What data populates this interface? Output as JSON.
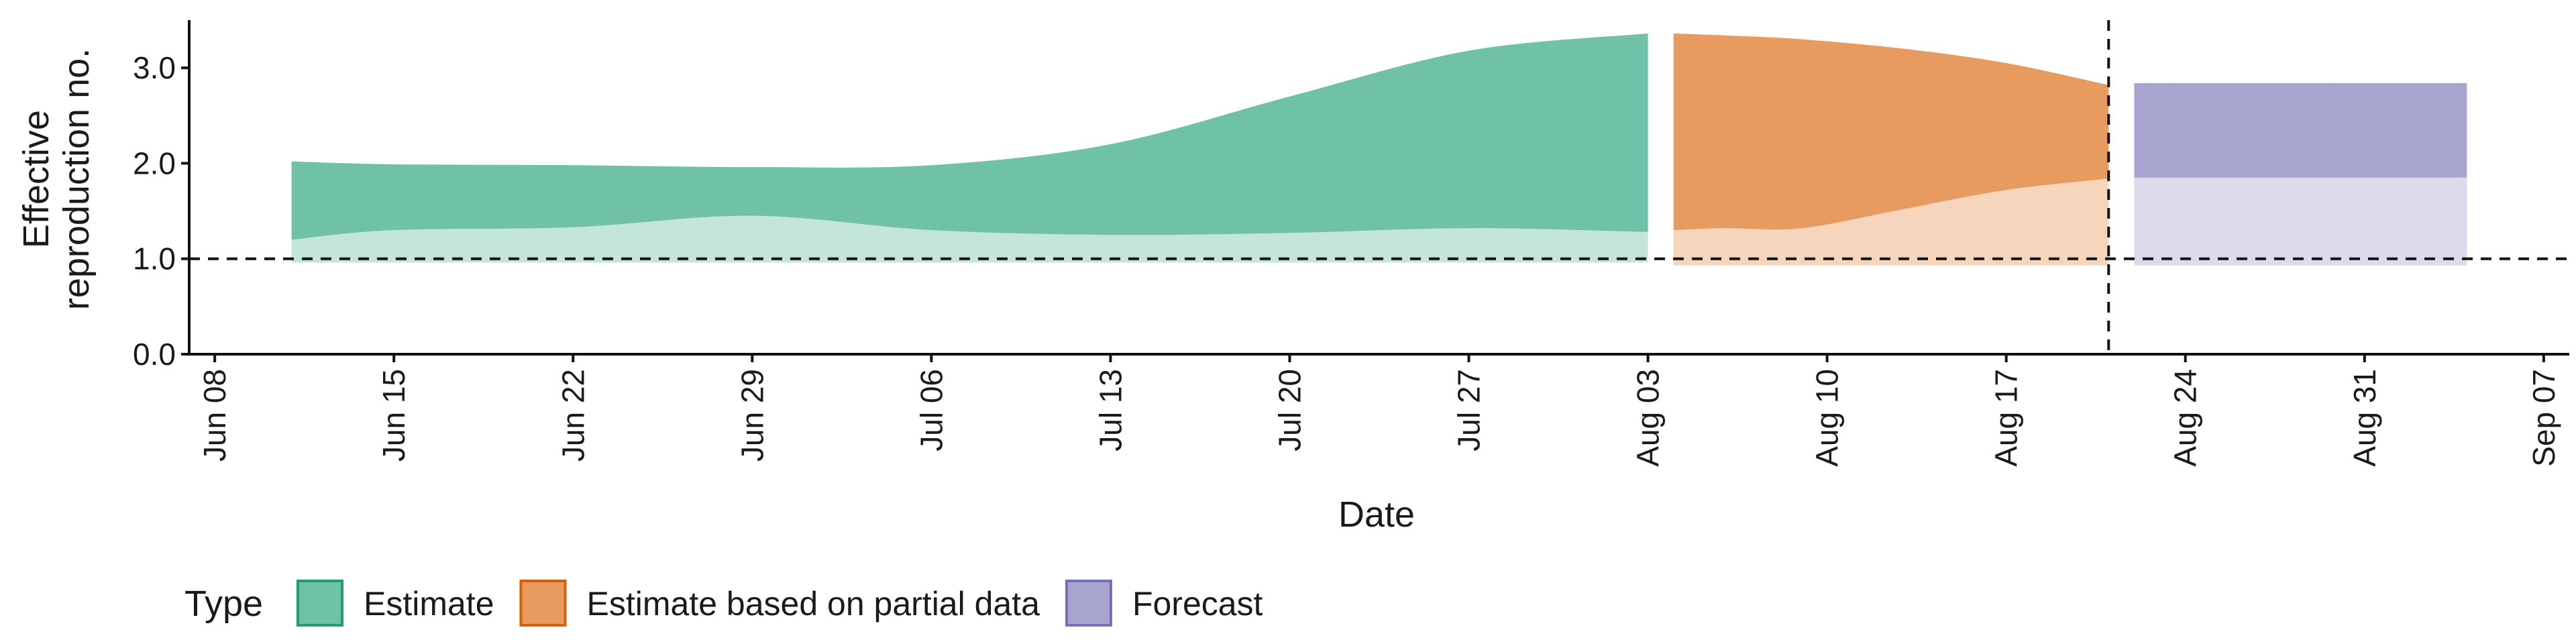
{
  "chart_data": {
    "type": "area",
    "xlabel": "Date",
    "ylabel_lines": [
      "Effective",
      "reproduction no."
    ],
    "ylim": [
      0,
      3.5
    ],
    "xlim": [
      "2020-06-07",
      "2020-09-08"
    ],
    "y_ticks": [
      {
        "value": 0,
        "label": "0.0"
      },
      {
        "value": 1,
        "label": "1.0"
      },
      {
        "value": 2,
        "label": "2.0"
      },
      {
        "value": 3,
        "label": "3.0"
      }
    ],
    "x_ticks": [
      {
        "date": "2020-06-08",
        "label": "Jun 08"
      },
      {
        "date": "2020-06-15",
        "label": "Jun 15"
      },
      {
        "date": "2020-06-22",
        "label": "Jun 22"
      },
      {
        "date": "2020-06-29",
        "label": "Jun 29"
      },
      {
        "date": "2020-07-06",
        "label": "Jul 06"
      },
      {
        "date": "2020-07-13",
        "label": "Jul 13"
      },
      {
        "date": "2020-07-20",
        "label": "Jul 20"
      },
      {
        "date": "2020-07-27",
        "label": "Jul 27"
      },
      {
        "date": "2020-08-03",
        "label": "Aug 03"
      },
      {
        "date": "2020-08-10",
        "label": "Aug 10"
      },
      {
        "date": "2020-08-17",
        "label": "Aug 17"
      },
      {
        "date": "2020-08-24",
        "label": "Aug 24"
      },
      {
        "date": "2020-08-31",
        "label": "Aug 31"
      },
      {
        "date": "2020-09-07",
        "label": "Sep 07"
      }
    ],
    "reference_line_y": 1.0,
    "reference_line_date": "2020-08-21",
    "grid": false,
    "legend": {
      "title": "Type",
      "position": "bottom-left",
      "entries": [
        "Estimate",
        "Estimate based on partial data",
        "Forecast"
      ]
    },
    "series": [
      {
        "name": "Estimate",
        "color": "#6fc1a8",
        "fill_color": "#c4e6da",
        "x": [
          "2020-06-11",
          "2020-06-15",
          "2020-06-22",
          "2020-06-29",
          "2020-07-06",
          "2020-07-13",
          "2020-07-20",
          "2020-07-27",
          "2020-08-03"
        ],
        "upper_90": [
          2.02,
          1.99,
          1.98,
          1.96,
          1.98,
          2.2,
          2.7,
          3.18,
          3.36
        ],
        "upper_50": [
          1.2,
          1.3,
          1.33,
          1.45,
          1.3,
          1.25,
          1.27,
          1.32,
          1.28
        ],
        "lower_90": [
          0.96,
          0.96,
          0.96,
          0.96,
          0.96,
          0.96,
          0.96,
          0.96,
          0.96
        ]
      },
      {
        "name": "Estimate based on partial data",
        "color": "#e89b5f",
        "fill_color": "#f6d5bd",
        "x": [
          "2020-08-04",
          "2020-08-06",
          "2020-08-09",
          "2020-08-13",
          "2020-08-17",
          "2020-08-21"
        ],
        "upper_90": [
          3.36,
          3.34,
          3.3,
          3.2,
          3.05,
          2.82
        ],
        "upper_50": [
          1.3,
          1.32,
          1.32,
          1.52,
          1.72,
          1.84
        ],
        "lower_90": [
          0.93,
          0.93,
          0.93,
          0.93,
          0.93,
          0.93
        ]
      },
      {
        "name": "Forecast",
        "color": "#a8a4d0",
        "fill_color": "#dcdbec",
        "x": [
          "2020-08-22",
          "2020-09-04"
        ],
        "upper_90": [
          2.84,
          2.84
        ],
        "upper_50": [
          1.85,
          1.85
        ],
        "lower_90": [
          0.93,
          0.93
        ]
      }
    ]
  }
}
